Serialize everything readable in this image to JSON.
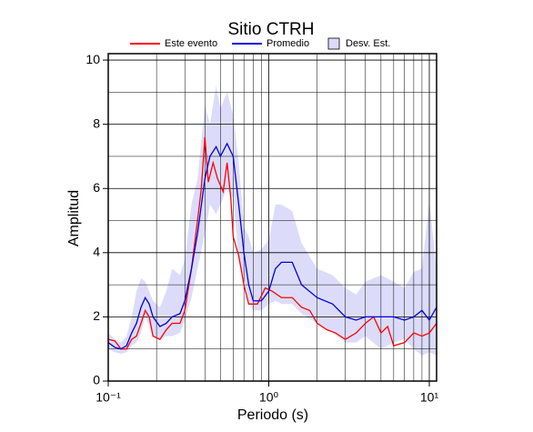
{
  "chart_data": {
    "type": "line",
    "title": "Sitio CTRH",
    "x_label": "Periodo (s)",
    "y_label": "Amplitud",
    "log_x": true,
    "grid": true,
    "xlim": [
      0.1,
      11.1
    ],
    "ylim": [
      0,
      10.2
    ],
    "xticks": [
      {
        "value": 0.1,
        "label": "10⁻¹"
      },
      {
        "value": 1,
        "label": "10⁰"
      },
      {
        "value": 10,
        "label": "10¹"
      }
    ],
    "xminor": [
      0.2,
      0.3,
      0.4,
      0.5,
      0.6,
      0.7,
      0.8,
      0.9,
      2,
      3,
      4,
      5,
      6,
      7,
      8,
      9
    ],
    "yticks": [
      0,
      2,
      4,
      6,
      8,
      10
    ],
    "yminor": [
      1,
      3,
      5,
      7,
      9
    ],
    "series": [
      {
        "name": "Este evento",
        "color": "#ff0000",
        "x": [
          0.1,
          0.11,
          0.12,
          0.13,
          0.14,
          0.15,
          0.16,
          0.17,
          0.18,
          0.19,
          0.21,
          0.23,
          0.25,
          0.28,
          0.3,
          0.33,
          0.36,
          0.38,
          0.4,
          0.42,
          0.45,
          0.48,
          0.52,
          0.55,
          0.58,
          0.6,
          0.65,
          0.7,
          0.75,
          0.85,
          0.95,
          1.05,
          1.2,
          1.4,
          1.6,
          1.8,
          2.0,
          2.3,
          2.6,
          3.0,
          3.5,
          4.0,
          4.5,
          5.0,
          5.5,
          6.0,
          7.0,
          8.0,
          9.0,
          10,
          11.1
        ],
        "values": [
          1.3,
          1.25,
          1.0,
          1.0,
          1.3,
          1.4,
          1.8,
          2.2,
          2.0,
          1.4,
          1.3,
          1.6,
          1.8,
          1.8,
          2.2,
          3.5,
          5.0,
          6.0,
          7.6,
          6.2,
          6.8,
          6.3,
          5.9,
          6.8,
          5.7,
          4.5,
          3.9,
          3.0,
          2.4,
          2.4,
          2.9,
          2.8,
          2.6,
          2.6,
          2.3,
          2.2,
          1.8,
          1.6,
          1.5,
          1.3,
          1.5,
          1.8,
          2.0,
          1.5,
          1.7,
          1.1,
          1.2,
          1.5,
          1.4,
          1.5,
          1.8
        ]
      },
      {
        "name": "Promedio",
        "color": "#0000dd",
        "x": [
          0.1,
          0.11,
          0.12,
          0.13,
          0.14,
          0.15,
          0.16,
          0.17,
          0.18,
          0.19,
          0.21,
          0.23,
          0.25,
          0.28,
          0.3,
          0.33,
          0.36,
          0.4,
          0.43,
          0.47,
          0.5,
          0.55,
          0.6,
          0.65,
          0.7,
          0.75,
          0.8,
          0.9,
          1.0,
          1.1,
          1.2,
          1.4,
          1.6,
          2.0,
          2.5,
          3.0,
          3.5,
          4.0,
          5.0,
          6.0,
          7.0,
          8.0,
          9.0,
          10,
          11.1
        ],
        "values": [
          1.2,
          1.05,
          1.0,
          1.1,
          1.5,
          1.8,
          2.3,
          2.6,
          2.4,
          2.0,
          1.7,
          1.8,
          2.0,
          2.1,
          2.5,
          3.5,
          4.6,
          6.3,
          7.0,
          7.3,
          7.0,
          7.4,
          7.0,
          5.5,
          4.0,
          3.0,
          2.5,
          2.5,
          2.8,
          3.5,
          3.7,
          3.7,
          3.0,
          2.6,
          2.4,
          2.0,
          1.9,
          2.0,
          2.0,
          2.0,
          1.9,
          2.0,
          2.2,
          1.9,
          2.3
        ]
      },
      {
        "name": "Desv. Est.",
        "color": "#dcdcfa",
        "x": [
          0.1,
          0.11,
          0.12,
          0.13,
          0.14,
          0.15,
          0.16,
          0.17,
          0.18,
          0.19,
          0.21,
          0.23,
          0.25,
          0.28,
          0.3,
          0.33,
          0.36,
          0.4,
          0.43,
          0.47,
          0.5,
          0.55,
          0.6,
          0.65,
          0.7,
          0.75,
          0.8,
          0.9,
          1.0,
          1.1,
          1.2,
          1.4,
          1.6,
          2.0,
          2.5,
          3.0,
          3.5,
          4.0,
          5.0,
          6.0,
          7.0,
          8.0,
          9.0,
          10,
          11.1
        ],
        "upper": [
          1.5,
          1.3,
          1.2,
          1.4,
          2.0,
          2.8,
          3.2,
          3.1,
          2.8,
          2.5,
          2.3,
          2.8,
          3.5,
          3.3,
          3.8,
          5.5,
          6.3,
          8.6,
          8.0,
          9.2,
          8.5,
          9.0,
          8.3,
          6.8,
          4.8,
          4.5,
          4.0,
          4.1,
          4.4,
          5.5,
          5.5,
          5.3,
          4.3,
          3.5,
          3.3,
          2.9,
          2.7,
          3.1,
          3.3,
          3.1,
          2.9,
          3.4,
          3.5,
          5.6,
          3.5
        ],
        "lower": [
          1.0,
          0.9,
          0.85,
          0.9,
          1.1,
          1.2,
          1.5,
          2.0,
          1.7,
          1.4,
          1.3,
          1.4,
          1.4,
          1.5,
          1.9,
          2.6,
          3.5,
          4.6,
          5.5,
          5.2,
          5.5,
          6.0,
          5.7,
          3.8,
          3.2,
          2.5,
          2.2,
          2.2,
          2.4,
          2.5,
          2.4,
          2.4,
          2.1,
          1.8,
          1.5,
          1.2,
          1.2,
          1.4,
          1.0,
          1.2,
          1.3,
          1.0,
          0.8,
          0.9,
          0.8
        ]
      }
    ]
  }
}
